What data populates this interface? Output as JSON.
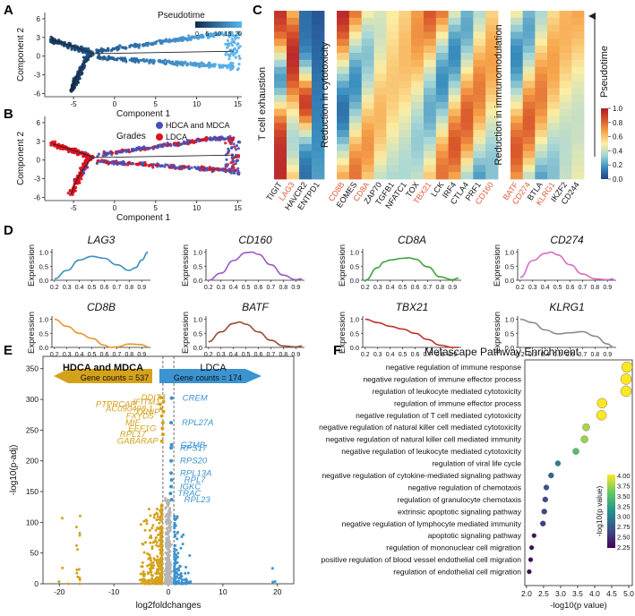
{
  "panel_labels": [
    "A",
    "B",
    "C",
    "D",
    "E",
    "F"
  ],
  "colors": {
    "pseudotime_dark": "#0e2a4f",
    "pseudotime_light": "#5ab8f0",
    "hdca": "#4a4fb3",
    "ldca": "#e0101a",
    "e_left": "#d4a21a",
    "e_right": "#3b93cf",
    "e_gray": "#b5b5b5",
    "red_gene": "#e05a3a",
    "heat": [
      "#1f3f86",
      "#3a8fbf",
      "#a7d7d7",
      "#fbeea4",
      "#f7a64c",
      "#d9562a",
      "#b11a2b"
    ],
    "viridis": [
      "#440154",
      "#3b528b",
      "#21918c",
      "#5ec962",
      "#fde725"
    ]
  },
  "chart_data": [
    {
      "id": "A",
      "type": "scatter",
      "xlabel": "Component 1",
      "ylabel": "Component 2",
      "x_ticks": [
        -5,
        0,
        5,
        10,
        15
      ],
      "y_ticks": [
        -6,
        -3,
        0,
        3,
        6
      ],
      "xlim": [
        -8.5,
        15.5
      ],
      "ylim": [
        -6.5,
        7
      ],
      "legend": {
        "title": "Pseudotime",
        "ticks": [
          "0",
          "5",
          "10",
          "15",
          "20"
        ]
      }
    },
    {
      "id": "B",
      "type": "scatter",
      "xlabel": "Component 1",
      "ylabel": "Component 2",
      "x_ticks": [
        -5,
        0,
        5,
        10,
        15
      ],
      "y_ticks": [
        -6,
        -3,
        0,
        3,
        6
      ],
      "xlim": [
        -8.5,
        15.5
      ],
      "ylim": [
        -6.5,
        7
      ],
      "legend": {
        "title": "Grades",
        "items": [
          "HDCA and MDCA",
          "LDCA"
        ]
      }
    },
    {
      "id": "C",
      "type": "heatmap",
      "y_axis_label": "Pseudotime",
      "colorbar": {
        "ticks": [
          "1.0",
          "0.8",
          "0.6",
          "0.4",
          "0.2",
          "0.0"
        ]
      },
      "groups": [
        {
          "label": "T cell exhaustion",
          "genes": [
            "TIGIT",
            "LAG3",
            "HAVCR2",
            "ENTPD1"
          ],
          "highlight": [
            false,
            true,
            false,
            false
          ]
        },
        {
          "label": "Reduction in cytotoxicity",
          "genes": [
            "CD8B",
            "EOMES",
            "CD8A",
            "ZAP70",
            "TGFB1",
            "NFATC1",
            "TOX",
            "TBX21",
            "LCK",
            "IRF4",
            "CTLA4",
            "PRF1",
            "CD160"
          ],
          "highlight": [
            true,
            false,
            true,
            false,
            false,
            false,
            false,
            true,
            false,
            false,
            false,
            false,
            true
          ]
        },
        {
          "label": "Reduction in immunomodulation",
          "genes": [
            "BATF",
            "CD274",
            "BTLA",
            "KLRG1",
            "IKZF2",
            "CD244"
          ],
          "highlight": [
            true,
            true,
            false,
            true,
            false,
            false
          ]
        }
      ]
    },
    {
      "id": "D",
      "type": "line",
      "ylabel": "Expression",
      "x_ticks": [
        "0.2",
        "0.3",
        "0.4",
        "0.5",
        "0.6",
        "0.7",
        "0.8",
        "0.9"
      ],
      "y_ticks": [
        "0.0",
        "0.5",
        "1.0"
      ],
      "series": [
        {
          "name": "LAG3",
          "color": "#3a8fc0",
          "x": [
            0.2,
            0.3,
            0.4,
            0.5,
            0.6,
            0.7,
            0.8,
            0.85,
            0.9,
            0.95
          ],
          "values": [
            0.05,
            0.35,
            0.72,
            0.85,
            0.78,
            0.55,
            0.35,
            0.45,
            0.72,
            1.0
          ]
        },
        {
          "name": "CD160",
          "color": "#9b59c9",
          "x": [
            0.2,
            0.3,
            0.4,
            0.5,
            0.55,
            0.6,
            0.7,
            0.8,
            0.9,
            0.95
          ],
          "values": [
            0.0,
            0.25,
            0.7,
            0.98,
            1.0,
            0.92,
            0.55,
            0.18,
            0.02,
            0.05
          ]
        },
        {
          "name": "CD8A",
          "color": "#3ea33b",
          "x": [
            0.2,
            0.3,
            0.35,
            0.4,
            0.5,
            0.55,
            0.6,
            0.7,
            0.8,
            0.9,
            0.95
          ],
          "values": [
            0.0,
            0.45,
            0.65,
            0.72,
            0.78,
            0.8,
            0.75,
            0.48,
            0.12,
            0.02,
            0.08
          ]
        },
        {
          "name": "CD274",
          "color": "#d96cc0",
          "x": [
            0.2,
            0.3,
            0.4,
            0.45,
            0.5,
            0.6,
            0.7,
            0.8,
            0.9,
            0.95
          ],
          "values": [
            0.1,
            0.7,
            0.95,
            1.0,
            0.9,
            0.55,
            0.22,
            0.05,
            0.02,
            0.05
          ]
        },
        {
          "name": "CD8B",
          "color": "#e8962a",
          "x": [
            0.2,
            0.3,
            0.4,
            0.5,
            0.6,
            0.65,
            0.7,
            0.8,
            0.9,
            0.95
          ],
          "values": [
            1.0,
            0.75,
            0.5,
            0.32,
            0.08,
            0.0,
            0.02,
            0.12,
            0.1,
            0.02
          ]
        },
        {
          "name": "BATF",
          "color": "#9c4a38",
          "x": [
            0.2,
            0.3,
            0.4,
            0.45,
            0.5,
            0.6,
            0.7,
            0.8,
            0.9,
            0.95
          ],
          "values": [
            0.2,
            0.55,
            0.85,
            0.9,
            0.82,
            0.55,
            0.25,
            0.05,
            0.02,
            0.05
          ]
        },
        {
          "name": "TBX21",
          "color": "#c0322b",
          "x": [
            0.2,
            0.3,
            0.4,
            0.5,
            0.6,
            0.7,
            0.8,
            0.9,
            0.95
          ],
          "values": [
            1.0,
            0.88,
            0.75,
            0.65,
            0.5,
            0.28,
            0.08,
            0.0,
            0.0
          ]
        },
        {
          "name": "KLRG1",
          "color": "#8c8c8c",
          "x": [
            0.2,
            0.3,
            0.4,
            0.5,
            0.6,
            0.7,
            0.8,
            0.9,
            0.95
          ],
          "values": [
            1.0,
            0.88,
            0.62,
            0.48,
            0.52,
            0.56,
            0.4,
            0.12,
            0.0
          ]
        }
      ]
    },
    {
      "id": "E",
      "type": "scatter",
      "xlabel": "log2foldchanges",
      "ylabel": "-log10(p-adj)",
      "x_ticks": [
        -20,
        -10,
        0,
        10,
        20
      ],
      "y_ticks": [
        0,
        50,
        100,
        150,
        200,
        250,
        300,
        350
      ],
      "xlim": [
        -23,
        23
      ],
      "ylim": [
        0,
        370
      ],
      "left_group": {
        "name": "HDCA and MDCA",
        "count_label": "Gene counts = 537"
      },
      "right_group": {
        "name": "LDCA",
        "count_label": "Gene counts = 174"
      },
      "left_genes": [
        {
          "name": "DDIT4",
          "x": -1.4,
          "y": 303
        },
        {
          "name": "IFITM1",
          "x": -0.9,
          "y": 296
        },
        {
          "name": "PTPRCAP",
          "x": -1.5,
          "y": 292
        },
        {
          "name": "AC090498.1",
          "x": -1.3,
          "y": 285
        },
        {
          "name": "TXNIP",
          "x": -0.9,
          "y": 280
        },
        {
          "name": "FXYD5",
          "x": -1.2,
          "y": 273
        },
        {
          "name": "MIF",
          "x": -1.0,
          "y": 262
        },
        {
          "name": "EEF1G",
          "x": -1.1,
          "y": 253
        },
        {
          "name": "RPL17",
          "x": -1.0,
          "y": 243
        },
        {
          "name": "GABARAP",
          "x": -1.2,
          "y": 232
        }
      ],
      "right_genes": [
        {
          "name": "CREM",
          "x": 0.6,
          "y": 302
        },
        {
          "name": "RPL27A",
          "x": 0.5,
          "y": 262
        },
        {
          "name": "GZMB",
          "x": 0.6,
          "y": 226
        },
        {
          "name": "RPS17",
          "x": 0.5,
          "y": 221
        },
        {
          "name": "RPS20",
          "x": 0.5,
          "y": 200
        },
        {
          "name": "RPL13A",
          "x": 0.5,
          "y": 180
        },
        {
          "name": "RPL7",
          "x": 0.6,
          "y": 169
        },
        {
          "name": "IGKC",
          "x": 0.5,
          "y": 158
        },
        {
          "name": "TRAC",
          "x": 0.4,
          "y": 147
        },
        {
          "name": "RPL23",
          "x": 0.6,
          "y": 137
        }
      ]
    },
    {
      "id": "F",
      "type": "scatter",
      "title": "Metascape Pathway Enrichment",
      "xlabel": "-log10(p value)",
      "x_ticks": [
        "2.0",
        "2.5",
        "3.0",
        "3.5",
        "4.0",
        "4.5",
        "5.0"
      ],
      "xlim": [
        1.95,
        5.0
      ],
      "colorbar": {
        "label": "-log10(p value)",
        "ticks": [
          "4.00",
          "3.75",
          "3.50",
          "3.25",
          "3.00",
          "2.75",
          "2.50",
          "2.25"
        ]
      },
      "terms": [
        {
          "name": "negative regulation of immune response",
          "value": 4.95,
          "size": 6
        },
        {
          "name": "negative regulation of immune effector process",
          "value": 4.92,
          "size": 6
        },
        {
          "name": "regulation of leukocyte mediated cytotoxicity",
          "value": 4.92,
          "size": 6
        },
        {
          "name": "regulation of immune effector process",
          "value": 4.22,
          "size": 5.5
        },
        {
          "name": "negative regulation of T cell mediated cytotoxicity",
          "value": 4.2,
          "size": 5.5
        },
        {
          "name": "negative regulation of natural killer cell mediated cytotoxicity",
          "value": 3.75,
          "size": 4
        },
        {
          "name": "negative regulation of natural killer cell mediated immunity",
          "value": 3.7,
          "size": 4
        },
        {
          "name": "negative regulation of leukocyte mediated cytotoxicity",
          "value": 3.45,
          "size": 3.5
        },
        {
          "name": "regulation of viral life cycle",
          "value": 2.92,
          "size": 3
        },
        {
          "name": "negative regulation of cytokine-mediated signaling pathway",
          "value": 2.72,
          "size": 3
        },
        {
          "name": "negative regulation of chemotaxis",
          "value": 2.58,
          "size": 3
        },
        {
          "name": "regulation of granulocyte chemotaxis",
          "value": 2.55,
          "size": 3
        },
        {
          "name": "extrinsic apoptotic signaling pathway",
          "value": 2.52,
          "size": 3
        },
        {
          "name": "negative regulation of lymphocyte mediated immunity",
          "value": 2.48,
          "size": 3
        },
        {
          "name": "apoptotic signaling pathway",
          "value": 2.22,
          "size": 2.5
        },
        {
          "name": "regulation of mononuclear cell migration",
          "value": 2.15,
          "size": 2.5
        },
        {
          "name": "positive regulation of blood vessel endothelial cell migration",
          "value": 2.12,
          "size": 2.5
        },
        {
          "name": "regulation of endothelial cell migration",
          "value": 2.08,
          "size": 2.5
        }
      ]
    }
  ]
}
